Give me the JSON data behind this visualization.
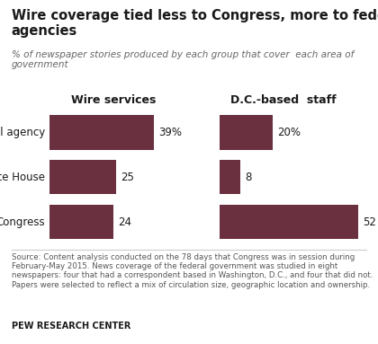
{
  "title": "Wire coverage tied less to Congress, more to federal\nagencies",
  "subtitle": "% of newspaper stories produced by each group that cover  each area of\ngovernment",
  "categories": [
    "Federal agency",
    "White House",
    "Congress"
  ],
  "wire_values": [
    39,
    25,
    24
  ],
  "dc_values": [
    20,
    8,
    52
  ],
  "wire_label": "Wire services",
  "dc_label": "D.C.-based  staff",
  "bar_color": "#6b3040",
  "background_color": "#ffffff",
  "source_text": "Source: Content analysis conducted on the 78 days that Congress was in session during\nFebruary-May 2015. News coverage of the federal government was studied in eight\nnewspapers: four that had a correspondent based in Washington, D.C., and four that did not.\nPapers were selected to reflect a mix of circulation size, geographic location and ownership.",
  "credit": "PEW RESEARCH CENTER",
  "max_val": 55
}
